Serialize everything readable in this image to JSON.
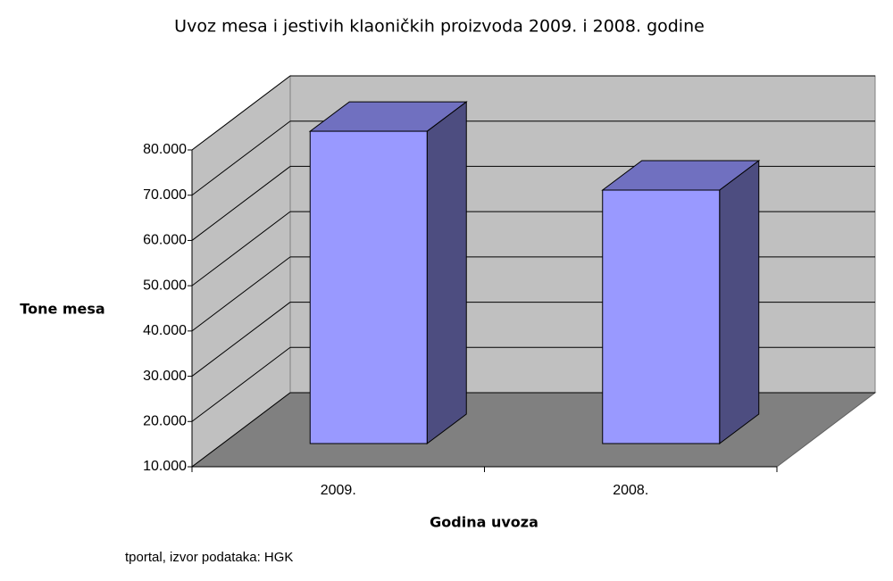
{
  "chart_data": {
    "type": "bar3d",
    "title": "Uvoz mesa i jestivih klaoničkih proizvoda 2009. i 2008. godine",
    "x_label": "Godina uvoza",
    "y_label": "Tone mesa",
    "source": "tportal, izvor podataka: HGK",
    "categories": [
      "2009.",
      "2008."
    ],
    "values": [
      79000,
      66000
    ],
    "color": "#9999ff",
    "ylim": [
      10000,
      80000
    ],
    "yticks": [
      {
        "value": 10000,
        "label": "10.000"
      },
      {
        "value": 20000,
        "label": "20.000"
      },
      {
        "value": 30000,
        "label": "30.000"
      },
      {
        "value": 40000,
        "label": "40.000"
      },
      {
        "value": 50000,
        "label": "50.000"
      },
      {
        "value": 60000,
        "label": "60.000"
      },
      {
        "value": 70000,
        "label": "70.000"
      },
      {
        "value": 80000,
        "label": "80.000"
      }
    ],
    "grid": true
  }
}
